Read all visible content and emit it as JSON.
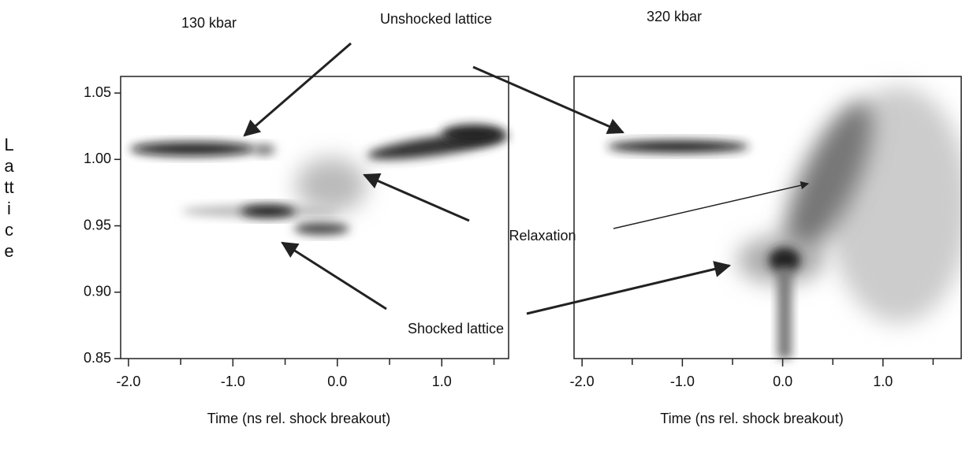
{
  "chart_data": [
    {
      "type": "image",
      "title": "130 kbar",
      "xlabel": "Time (ns rel. shock breakout)",
      "ylabel": "Lattice",
      "xlim": [
        -2.075,
        1.64
      ],
      "ylim": [
        0.85,
        1.0625
      ],
      "xticks": [
        {
          "value": -2,
          "label": "-2.0"
        },
        {
          "value": -1,
          "label": "-1.0"
        },
        {
          "value": 0,
          "label": "0.0"
        },
        {
          "value": 1,
          "label": "1.0"
        }
      ],
      "xminorticks": [
        -1.5,
        -0.5,
        0.5,
        1.5
      ],
      "yticks": [
        {
          "value": 0.85,
          "label": "0.85"
        },
        {
          "value": 0.9,
          "label": "0.90"
        },
        {
          "value": 0.95,
          "label": "0.95"
        },
        {
          "value": 1,
          "label": "1.00"
        },
        {
          "value": 1.05,
          "label": "1.05"
        }
      ]
    },
    {
      "type": "image",
      "title": "320 kbar",
      "xlabel": "Time (ns rel. shock breakout)",
      "xlim": [
        -2.08,
        1.78
      ],
      "ylim": [
        0.85,
        1.0625
      ],
      "xticks": [
        {
          "value": -2,
          "label": "-2.0"
        },
        {
          "value": -1,
          "label": "-1.0"
        },
        {
          "value": 0,
          "label": "0.0"
        },
        {
          "value": 1,
          "label": "1.0"
        }
      ],
      "xminorticks": [
        -1.5,
        -0.5,
        0.5,
        1.5
      ]
    }
  ],
  "annotations": [
    "Unshocked lattice",
    "Relaxation",
    "Shocked lattice"
  ]
}
